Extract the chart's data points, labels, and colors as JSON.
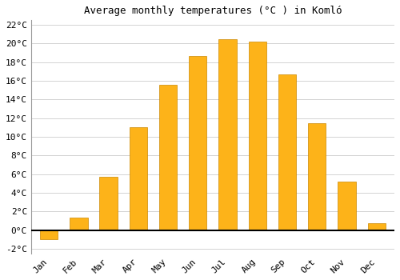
{
  "title": "Average monthly temperatures (°C ) in Komló",
  "months": [
    "Jan",
    "Feb",
    "Mar",
    "Apr",
    "May",
    "Jun",
    "Jul",
    "Aug",
    "Sep",
    "Oct",
    "Nov",
    "Dec"
  ],
  "values": [
    -1.0,
    1.3,
    5.7,
    11.0,
    15.6,
    18.7,
    20.5,
    20.2,
    16.7,
    11.5,
    5.2,
    0.7
  ],
  "bar_color": "#FDB319",
  "bar_edge_color": "#CC8800",
  "background_color": "#ffffff",
  "grid_color": "#cccccc",
  "ylim": [
    -2.5,
    22.5
  ],
  "yticks": [
    -2,
    0,
    2,
    4,
    6,
    8,
    10,
    12,
    14,
    16,
    18,
    20,
    22
  ],
  "title_fontsize": 9,
  "tick_fontsize": 8,
  "font_family": "monospace",
  "bar_width": 0.6
}
